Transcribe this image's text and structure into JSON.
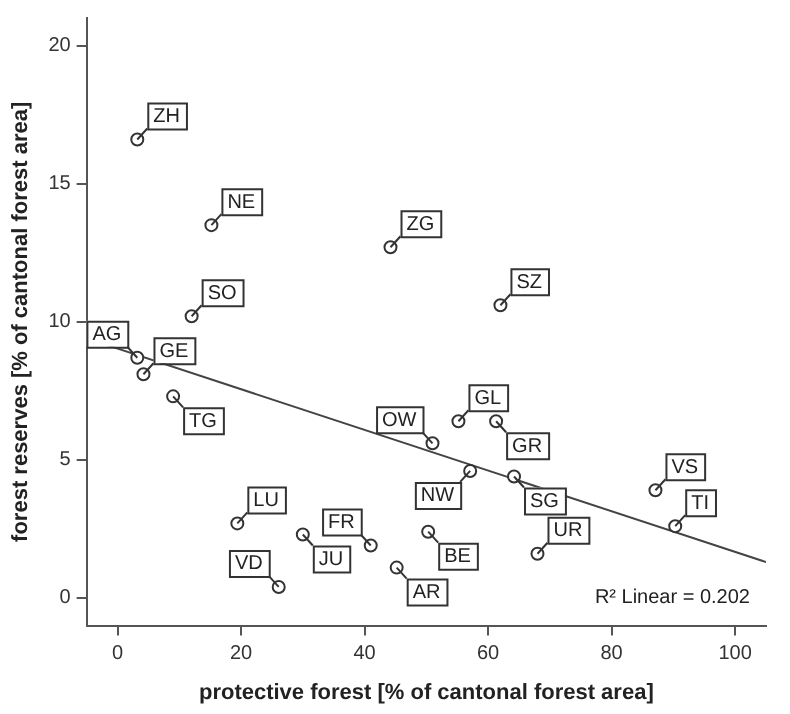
{
  "chart_data": {
    "type": "scatter",
    "xlabel": "protective forest [% of cantonal forest area]",
    "ylabel": "forest reserves [% of cantonal forest area]",
    "xlim": [
      -5,
      105
    ],
    "ylim": [
      -1,
      21
    ],
    "xticks": [
      0,
      20,
      40,
      60,
      80,
      100
    ],
    "yticks": [
      0,
      5,
      10,
      15,
      20
    ],
    "grid": false,
    "legend": false,
    "marker": "circle",
    "annotations": [
      "R² Linear = 0.202"
    ],
    "series": [
      {
        "color": "#333333",
        "x": [
          3.2,
          15.2,
          44.2,
          12,
          3.2,
          62,
          4.2,
          9,
          55.2,
          61.3,
          51,
          57.1,
          64.2,
          87.1,
          90.3,
          68,
          41,
          50.3,
          45.2,
          19.4,
          30,
          26.1
        ],
        "values": [
          16.6,
          13.5,
          12.7,
          10.2,
          8.7,
          10.6,
          8.1,
          7.3,
          6.4,
          6.4,
          5.6,
          4.6,
          4.4,
          3.9,
          2.6,
          1.6,
          1.9,
          2.4,
          1.1,
          2.7,
          2.3,
          0.4
        ],
        "value_labels": [
          "ZH",
          "NE",
          "ZG",
          "SO",
          "AG",
          "SZ",
          "GE",
          "TG",
          "GL",
          "GR",
          "OW",
          "NW",
          "SG",
          "VS",
          "TI",
          "UR",
          "FR",
          "BE",
          "AR",
          "LU",
          "JU",
          "VD"
        ]
      },
      {
        "type": "line",
        "marker": "none",
        "color": "#444444",
        "x": [
          -5,
          105
        ],
        "values": [
          9.4,
          1.3
        ]
      }
    ]
  }
}
